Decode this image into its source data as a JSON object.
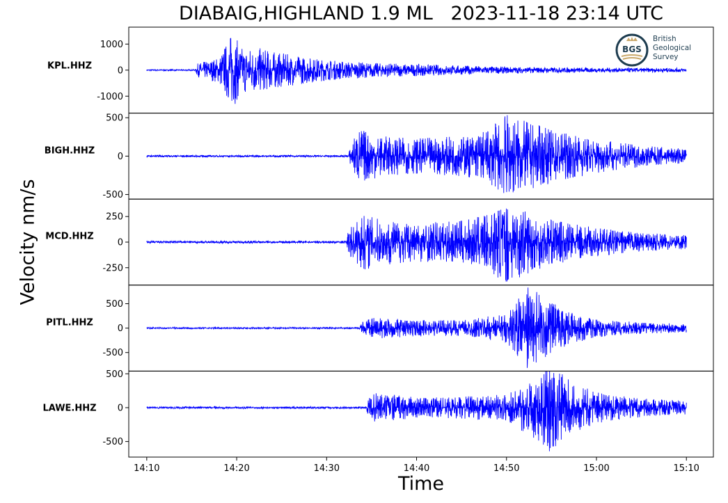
{
  "title": "DIABAIG,HIGHLAND 1.9 ML   2023-11-18 23:14 UTC",
  "logo": {
    "initials": "BGS",
    "line1": "British",
    "line2": "Geological",
    "line3": "Survey"
  },
  "chart_data": {
    "type": "line",
    "title": "DIABAIG,HIGHLAND 1.9 ML   2023-11-18 23:14 UTC",
    "xlabel": "Time",
    "ylabel": "Velocity nm/s",
    "x_range": [
      "14:08",
      "15:13"
    ],
    "x_ticks": [
      "14:10",
      "14:20",
      "14:30",
      "14:40",
      "14:50",
      "15:00",
      "15:10"
    ],
    "trace_start": "14:10",
    "trace_end": "15:10",
    "line_color": "#0000ff",
    "grid": false,
    "panels": [
      {
        "station": "KPL.HHZ",
        "ylim": [
          -1650,
          1650
        ],
        "yticks": [
          1000,
          0,
          -1000
        ],
        "ytick_labels": [
          "1000",
          "0",
          "-1000"
        ],
        "noise": 25,
        "arrival": "14:15.5",
        "envelope": [
          [
            "14:10",
            25
          ],
          [
            "14:15.4",
            25
          ],
          [
            "14:15.6",
            250
          ],
          [
            "14:18",
            500
          ],
          [
            "14:19.5",
            1500
          ],
          [
            "14:20.5",
            900
          ],
          [
            "14:22",
            900
          ],
          [
            "14:25",
            650
          ],
          [
            "14:30",
            400
          ],
          [
            "14:35",
            280
          ],
          [
            "14:40",
            230
          ],
          [
            "14:45",
            180
          ],
          [
            "14:50",
            130
          ],
          [
            "14:55",
            110
          ],
          [
            "15:00",
            90
          ],
          [
            "15:10",
            80
          ]
        ]
      },
      {
        "station": "BIGH.HHZ",
        "ylim": [
          -560,
          560
        ],
        "yticks": [
          500,
          0,
          -500
        ],
        "ytick_labels": [
          "500",
          "0",
          "-500"
        ],
        "noise": 12,
        "arrival": "14:32.5",
        "envelope": [
          [
            "14:10",
            12
          ],
          [
            "14:32.4",
            12
          ],
          [
            "14:32.6",
            110
          ],
          [
            "14:33.5",
            380
          ],
          [
            "14:36",
            260
          ],
          [
            "14:40",
            230
          ],
          [
            "14:45",
            260
          ],
          [
            "14:48",
            350
          ],
          [
            "14:50",
            560
          ],
          [
            "14:52",
            460
          ],
          [
            "14:55",
            350
          ],
          [
            "15:00",
            220
          ],
          [
            "15:05",
            140
          ],
          [
            "15:10",
            100
          ]
        ]
      },
      {
        "station": "MCD.HHZ",
        "ylim": [
          -420,
          420
        ],
        "yticks": [
          250,
          0,
          -250
        ],
        "ytick_labels": [
          "250",
          "0",
          "-250"
        ],
        "noise": 12,
        "arrival": "14:32.3",
        "envelope": [
          [
            "14:10",
            12
          ],
          [
            "14:32.2",
            12
          ],
          [
            "14:32.4",
            120
          ],
          [
            "14:34",
            280
          ],
          [
            "14:36",
            230
          ],
          [
            "14:40",
            190
          ],
          [
            "14:45",
            210
          ],
          [
            "14:48",
            270
          ],
          [
            "14:50",
            420
          ],
          [
            "14:52",
            320
          ],
          [
            "14:55",
            220
          ],
          [
            "15:00",
            140
          ],
          [
            "15:05",
            90
          ],
          [
            "15:10",
            70
          ]
        ]
      },
      {
        "station": "PITL.HHZ",
        "ylim": [
          -880,
          880
        ],
        "yticks": [
          500,
          0,
          -500
        ],
        "ytick_labels": [
          "500",
          "0",
          "-500"
        ],
        "noise": 15,
        "arrival": "14:33.7",
        "envelope": [
          [
            "14:10",
            15
          ],
          [
            "14:33.6",
            15
          ],
          [
            "14:33.8",
            110
          ],
          [
            "14:35",
            220
          ],
          [
            "14:40",
            170
          ],
          [
            "14:45",
            160
          ],
          [
            "14:50",
            300
          ],
          [
            "14:52.5",
            880
          ],
          [
            "14:54",
            650
          ],
          [
            "14:57",
            330
          ],
          [
            "15:00",
            190
          ],
          [
            "15:05",
            120
          ],
          [
            "15:10",
            90
          ]
        ]
      },
      {
        "station": "LAWE.HHZ",
        "ylim": [
          -730,
          540
        ],
        "yticks": [
          500,
          0,
          -500
        ],
        "ytick_labels": [
          "500",
          "0",
          "-500"
        ],
        "noise": 15,
        "arrival": "14:34.5",
        "envelope": [
          [
            "14:10",
            15
          ],
          [
            "14:34.4",
            15
          ],
          [
            "14:34.6",
            120
          ],
          [
            "14:35.5",
            230
          ],
          [
            "14:40",
            150
          ],
          [
            "14:45",
            160
          ],
          [
            "14:50",
            200
          ],
          [
            "14:53",
            450
          ],
          [
            "14:55",
            700
          ],
          [
            "14:57",
            400
          ],
          [
            "15:00",
            230
          ],
          [
            "15:05",
            140
          ],
          [
            "15:10",
            100
          ]
        ]
      }
    ]
  }
}
